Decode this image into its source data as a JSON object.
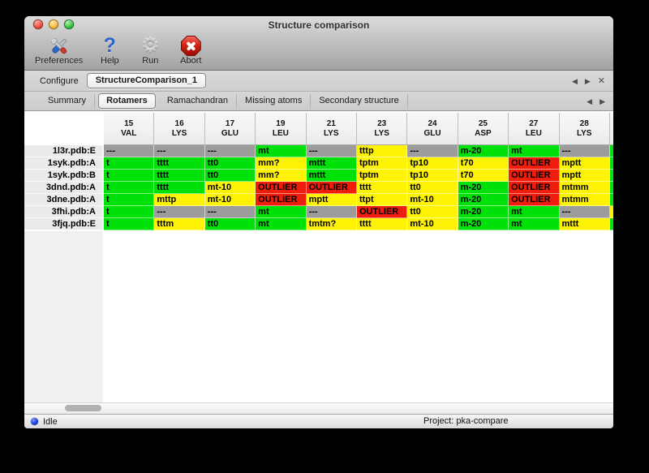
{
  "window": {
    "title": "Structure comparison"
  },
  "toolbar": {
    "items": [
      {
        "label": "Preferences",
        "icon": "tools-icon"
      },
      {
        "label": "Help",
        "icon": "help-icon"
      },
      {
        "label": "Run",
        "icon": "gear-icon"
      },
      {
        "label": "Abort",
        "icon": "abort-icon"
      }
    ]
  },
  "icons": {
    "help_glyph": "?",
    "gear_glyph": "⚙",
    "back_glyph": "◀",
    "forward_glyph": "▶",
    "close_glyph": "✕"
  },
  "configure": {
    "label": "Configure",
    "value": "StructureComparison_1"
  },
  "tabs": {
    "items": [
      "Summary",
      "Rotamers",
      "Ramachandran",
      "Missing atoms",
      "Secondary structure"
    ],
    "selected": "Rotamers"
  },
  "colors": {
    "green": "#00e10a",
    "yellow": "#fdf303",
    "red": "#ef1d0d",
    "gray": "#9c9c9c"
  },
  "table": {
    "columns": [
      {
        "num": "15",
        "res": "VAL"
      },
      {
        "num": "16",
        "res": "LYS"
      },
      {
        "num": "17",
        "res": "GLU"
      },
      {
        "num": "19",
        "res": "LEU"
      },
      {
        "num": "21",
        "res": "LYS"
      },
      {
        "num": "23",
        "res": "LYS"
      },
      {
        "num": "24",
        "res": "GLU"
      },
      {
        "num": "25",
        "res": "ASP"
      },
      {
        "num": "27",
        "res": "LEU"
      },
      {
        "num": "28",
        "res": "LYS"
      }
    ],
    "rows": [
      {
        "label": "1l3r.pdb:E",
        "sliver": "green",
        "cells": [
          {
            "text": "---",
            "color": "gray"
          },
          {
            "text": "---",
            "color": "gray"
          },
          {
            "text": "---",
            "color": "gray"
          },
          {
            "text": "mt",
            "color": "green"
          },
          {
            "text": "---",
            "color": "gray"
          },
          {
            "text": "tttp",
            "color": "yellow"
          },
          {
            "text": "---",
            "color": "gray"
          },
          {
            "text": "m-20",
            "color": "green"
          },
          {
            "text": "mt",
            "color": "green"
          },
          {
            "text": "---",
            "color": "gray"
          }
        ]
      },
      {
        "label": "1syk.pdb:A",
        "sliver": "green",
        "cells": [
          {
            "text": "t",
            "color": "green"
          },
          {
            "text": "tttt",
            "color": "green"
          },
          {
            "text": "tt0",
            "color": "green"
          },
          {
            "text": "mm?",
            "color": "yellow"
          },
          {
            "text": "mttt",
            "color": "green"
          },
          {
            "text": "tptm",
            "color": "yellow"
          },
          {
            "text": "tp10",
            "color": "yellow"
          },
          {
            "text": "t70",
            "color": "yellow"
          },
          {
            "text": "OUTLIER",
            "color": "red"
          },
          {
            "text": "mptt",
            "color": "yellow"
          }
        ]
      },
      {
        "label": "1syk.pdb:B",
        "sliver": "green",
        "cells": [
          {
            "text": "t",
            "color": "green"
          },
          {
            "text": "tttt",
            "color": "green"
          },
          {
            "text": "tt0",
            "color": "green"
          },
          {
            "text": "mm?",
            "color": "yellow"
          },
          {
            "text": "mttt",
            "color": "green"
          },
          {
            "text": "tptm",
            "color": "yellow"
          },
          {
            "text": "tp10",
            "color": "yellow"
          },
          {
            "text": "t70",
            "color": "yellow"
          },
          {
            "text": "OUTLIER",
            "color": "red"
          },
          {
            "text": "mptt",
            "color": "yellow"
          }
        ]
      },
      {
        "label": "3dnd.pdb:A",
        "sliver": "green",
        "cells": [
          {
            "text": "t",
            "color": "green"
          },
          {
            "text": "tttt",
            "color": "green"
          },
          {
            "text": "mt-10",
            "color": "yellow"
          },
          {
            "text": "OUTLIER",
            "color": "red"
          },
          {
            "text": "OUTLIER",
            "color": "red"
          },
          {
            "text": "tttt",
            "color": "yellow"
          },
          {
            "text": "tt0",
            "color": "yellow"
          },
          {
            "text": "m-20",
            "color": "green"
          },
          {
            "text": "OUTLIER",
            "color": "red"
          },
          {
            "text": "mtmm",
            "color": "yellow"
          }
        ]
      },
      {
        "label": "3dne.pdb:A",
        "sliver": "green",
        "cells": [
          {
            "text": "t",
            "color": "green"
          },
          {
            "text": "mttp",
            "color": "yellow"
          },
          {
            "text": "mt-10",
            "color": "yellow"
          },
          {
            "text": "OUTLIER",
            "color": "red"
          },
          {
            "text": "mptt",
            "color": "yellow"
          },
          {
            "text": "ttpt",
            "color": "yellow"
          },
          {
            "text": "mt-10",
            "color": "yellow"
          },
          {
            "text": "m-20",
            "color": "green"
          },
          {
            "text": "OUTLIER",
            "color": "red"
          },
          {
            "text": "mtmm",
            "color": "yellow"
          }
        ]
      },
      {
        "label": "3fhi.pdb:A",
        "sliver": "yellow",
        "cells": [
          {
            "text": "t",
            "color": "green"
          },
          {
            "text": "---",
            "color": "gray"
          },
          {
            "text": "---",
            "color": "gray"
          },
          {
            "text": "mt",
            "color": "green"
          },
          {
            "text": "---",
            "color": "gray"
          },
          {
            "text": "OUTLIER",
            "color": "red"
          },
          {
            "text": "tt0",
            "color": "yellow"
          },
          {
            "text": "m-20",
            "color": "green"
          },
          {
            "text": "mt",
            "color": "green"
          },
          {
            "text": "---",
            "color": "gray"
          }
        ]
      },
      {
        "label": "3fjq.pdb:E",
        "sliver": "green",
        "cells": [
          {
            "text": "t",
            "color": "green"
          },
          {
            "text": "tttm",
            "color": "yellow"
          },
          {
            "text": "tt0",
            "color": "green"
          },
          {
            "text": "mt",
            "color": "green"
          },
          {
            "text": "tmtm?",
            "color": "yellow"
          },
          {
            "text": "tttt",
            "color": "yellow"
          },
          {
            "text": "mt-10",
            "color": "yellow"
          },
          {
            "text": "m-20",
            "color": "green"
          },
          {
            "text": "mt",
            "color": "green"
          },
          {
            "text": "mttt",
            "color": "yellow"
          }
        ]
      }
    ]
  },
  "statusbar": {
    "status": "Idle",
    "project": "Project: pka-compare"
  }
}
